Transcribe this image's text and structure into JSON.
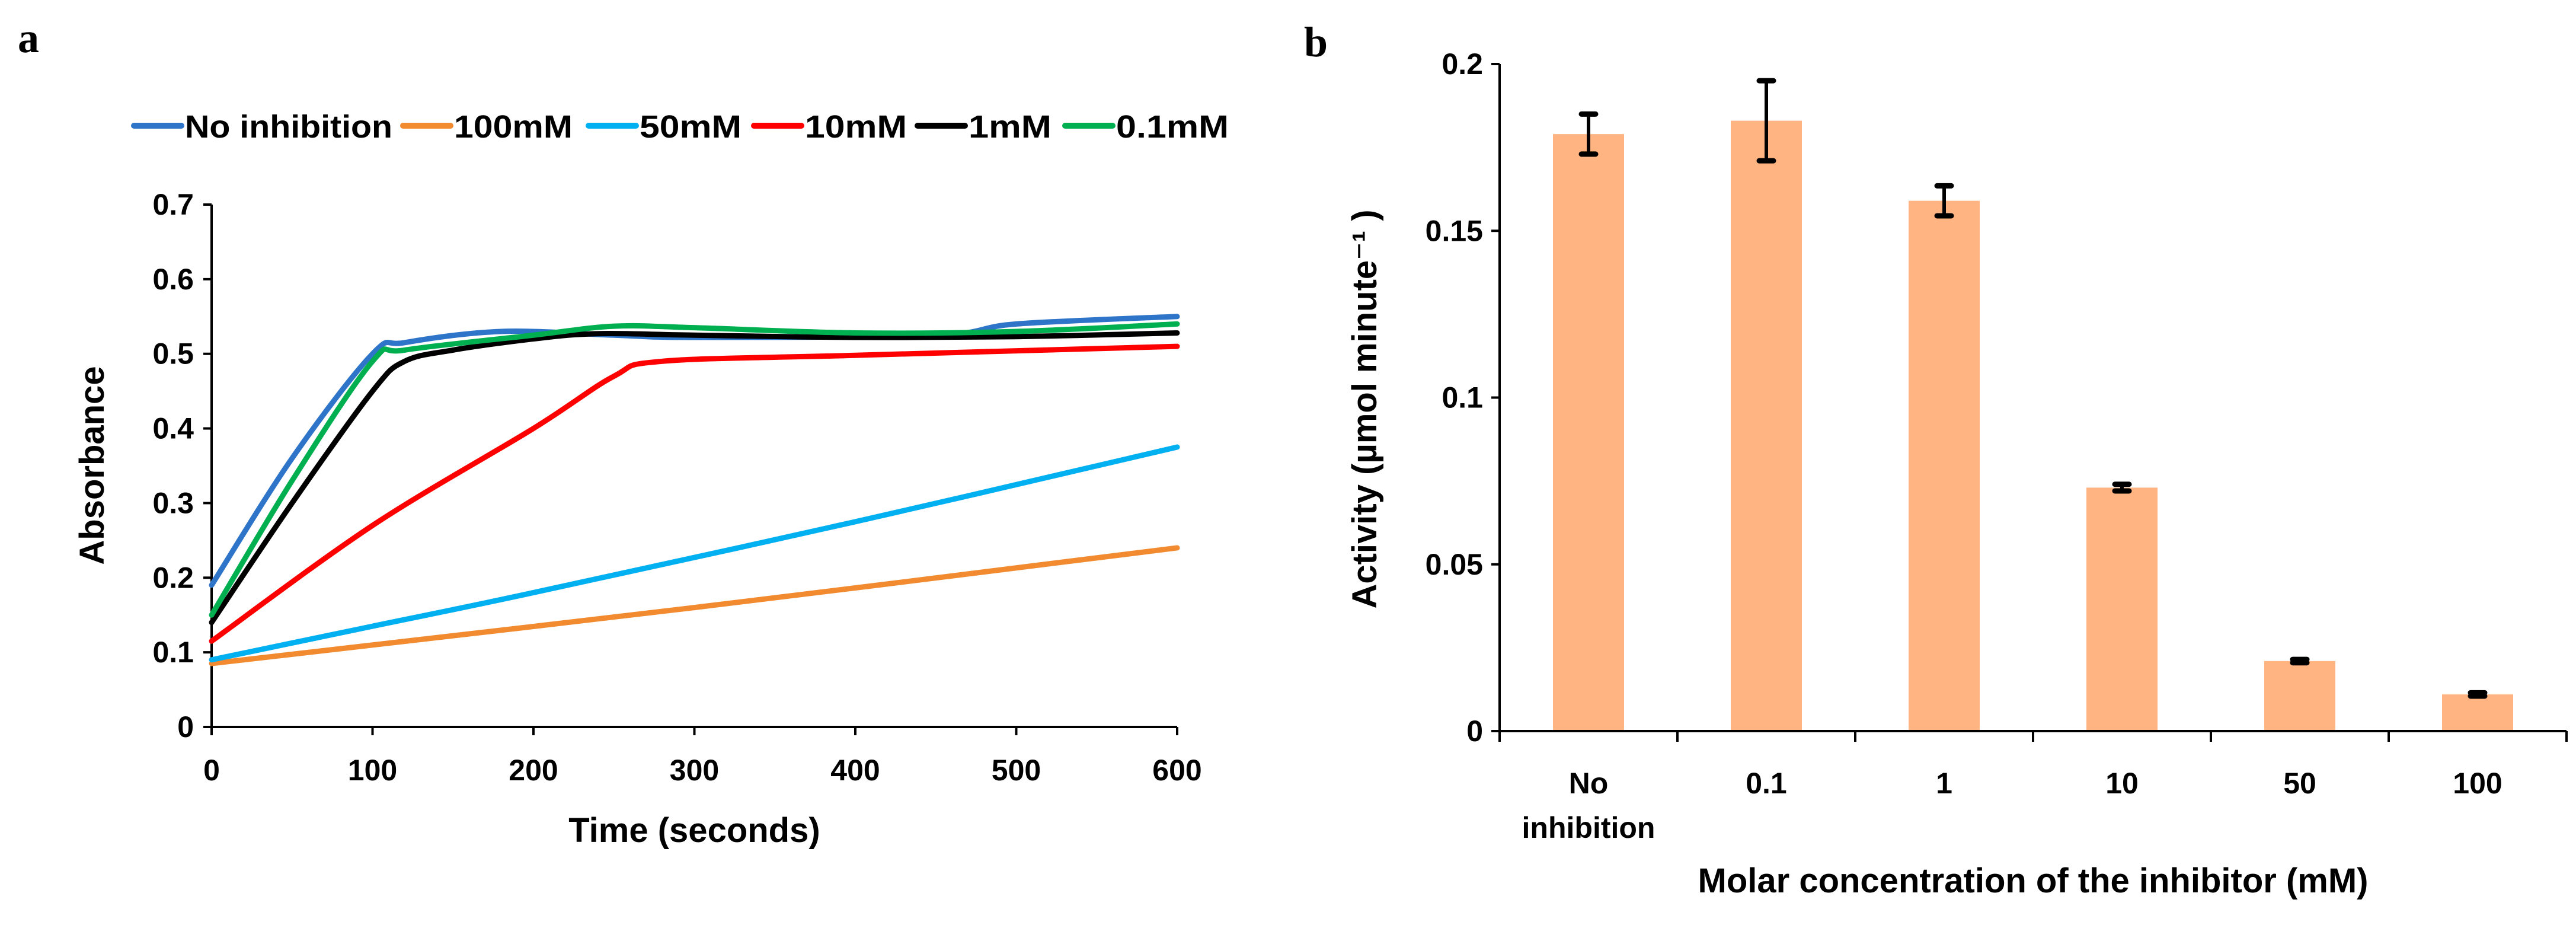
{
  "chart_data": [
    {
      "panel": "a",
      "type": "line",
      "xlabel": "Time (seconds)",
      "ylabel": "Absorbance",
      "xlim": [
        0,
        600
      ],
      "ylim": [
        0,
        0.7
      ],
      "xticks": [
        0,
        100,
        200,
        300,
        400,
        500,
        600
      ],
      "yticks": [
        0,
        0.1,
        0.2,
        0.3,
        0.4,
        0.5,
        0.6,
        0.7
      ],
      "ytick_labels": [
        "0",
        "0.1",
        "0.2",
        "0.3",
        "0.4",
        "0.5",
        "0.6",
        "0.7"
      ],
      "grid": false,
      "legend_position": "top",
      "series": [
        {
          "name": "No inhibition",
          "color": "#2E75C9",
          "x": [
            0,
            50,
            100,
            120,
            180,
            250,
            300,
            450,
            500,
            600
          ],
          "y": [
            0.19,
            0.36,
            0.5,
            0.515,
            0.53,
            0.525,
            0.522,
            0.525,
            0.54,
            0.55
          ]
        },
        {
          "name": "100mM",
          "color": "#F28A30",
          "x": [
            0,
            300,
            600
          ],
          "y": [
            0.085,
            0.16,
            0.24
          ]
        },
        {
          "name": "50mM",
          "color": "#00B0F0",
          "x": [
            0,
            100,
            200,
            400,
            600
          ],
          "y": [
            0.09,
            0.135,
            0.18,
            0.275,
            0.375
          ]
        },
        {
          "name": "10mM",
          "color": "#FF0000",
          "x": [
            0,
            100,
            200,
            250,
            280,
            400,
            600
          ],
          "y": [
            0.115,
            0.27,
            0.4,
            0.47,
            0.49,
            0.498,
            0.51
          ]
        },
        {
          "name": "1mM",
          "color": "#000000",
          "x": [
            0,
            50,
            100,
            120,
            150,
            200,
            240,
            300,
            400,
            500,
            600
          ],
          "y": [
            0.14,
            0.3,
            0.45,
            0.49,
            0.505,
            0.52,
            0.527,
            0.525,
            0.522,
            0.523,
            0.528
          ]
        },
        {
          "name": "0.1mM",
          "color": "#00B050",
          "x": [
            0,
            50,
            100,
            120,
            200,
            250,
            300,
            400,
            500,
            600
          ],
          "y": [
            0.15,
            0.33,
            0.49,
            0.505,
            0.525,
            0.537,
            0.535,
            0.528,
            0.53,
            0.54
          ]
        }
      ]
    },
    {
      "panel": "b",
      "type": "bar",
      "xlabel": "Molar concentration of the inhibitor (mM)",
      "ylabel": "Activity (µmol minute⁻¹ )",
      "categories": [
        [
          "No",
          "inhibition"
        ],
        [
          "0.1"
        ],
        [
          "1"
        ],
        [
          "10"
        ],
        [
          "50"
        ],
        [
          "100"
        ]
      ],
      "values": [
        0.179,
        0.183,
        0.159,
        0.073,
        0.021,
        0.011
      ],
      "errors": [
        0.006,
        0.012,
        0.0045,
        0.001,
        0.0005,
        0.0005
      ],
      "ylim": [
        0,
        0.2
      ],
      "yticks": [
        0,
        0.05,
        0.1,
        0.15,
        0.2
      ],
      "ytick_labels": [
        "0",
        "0.05",
        "0.1",
        "0.15",
        "0.2"
      ],
      "bar_color": "#FFB482",
      "grid": false
    }
  ],
  "panel_labels": [
    "a",
    "b"
  ]
}
